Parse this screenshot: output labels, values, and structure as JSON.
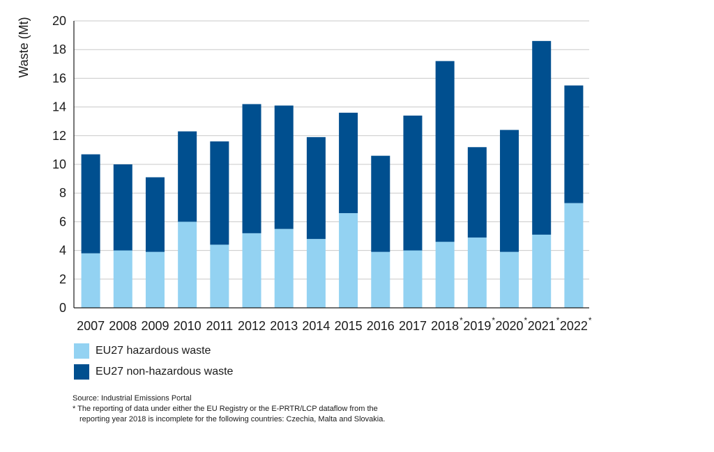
{
  "colors": {
    "hazardous": "#93D2F2",
    "non_hazardous": "#004F8F",
    "grid": "#c8c8c8",
    "axis": "#1a1a1a"
  },
  "chart_data": {
    "type": "bar",
    "stacked": true,
    "title": "",
    "xlabel": "",
    "ylabel": "Waste (Mt)",
    "ylim": [
      0,
      20
    ],
    "yticks": [
      0,
      2,
      4,
      6,
      8,
      10,
      12,
      14,
      16,
      18,
      20
    ],
    "grid": true,
    "categories": [
      "2007",
      "2008",
      "2009",
      "2010",
      "2011",
      "2012",
      "2013",
      "2014",
      "2015",
      "2016",
      "2017",
      "2018",
      "2019",
      "2020",
      "2021",
      "2022"
    ],
    "category_marks": [
      "",
      "",
      "",
      "",
      "",
      "",
      "",
      "",
      "",
      "",
      "",
      "*",
      "*",
      "*",
      "*",
      "*"
    ],
    "series": [
      {
        "name": "EU27 hazardous waste",
        "values": [
          3.8,
          4.0,
          3.9,
          6.0,
          4.4,
          5.2,
          5.5,
          4.8,
          6.6,
          3.9,
          4.0,
          4.6,
          4.9,
          3.9,
          5.1,
          7.3
        ]
      },
      {
        "name": "EU27 non-hazardous waste",
        "values": [
          6.9,
          6.0,
          5.2,
          6.3,
          7.2,
          9.0,
          8.6,
          7.1,
          7.0,
          6.7,
          9.4,
          12.6,
          6.3,
          8.5,
          13.5,
          8.2
        ]
      }
    ],
    "legend_position": "bottom-left"
  },
  "legend": {
    "items": [
      {
        "label": "EU27 hazardous waste"
      },
      {
        "label": "EU27 non-hazardous waste"
      }
    ]
  },
  "notes": {
    "source": "Source: Industrial Emissions Portal",
    "footnote_line1": "* The reporting of data under either the EU Registry or the E-PRTR/LCP dataflow from the",
    "footnote_line2": "reporting year 2018 is incomplete for the following countries: Czechia, Malta and Slovakia."
  }
}
